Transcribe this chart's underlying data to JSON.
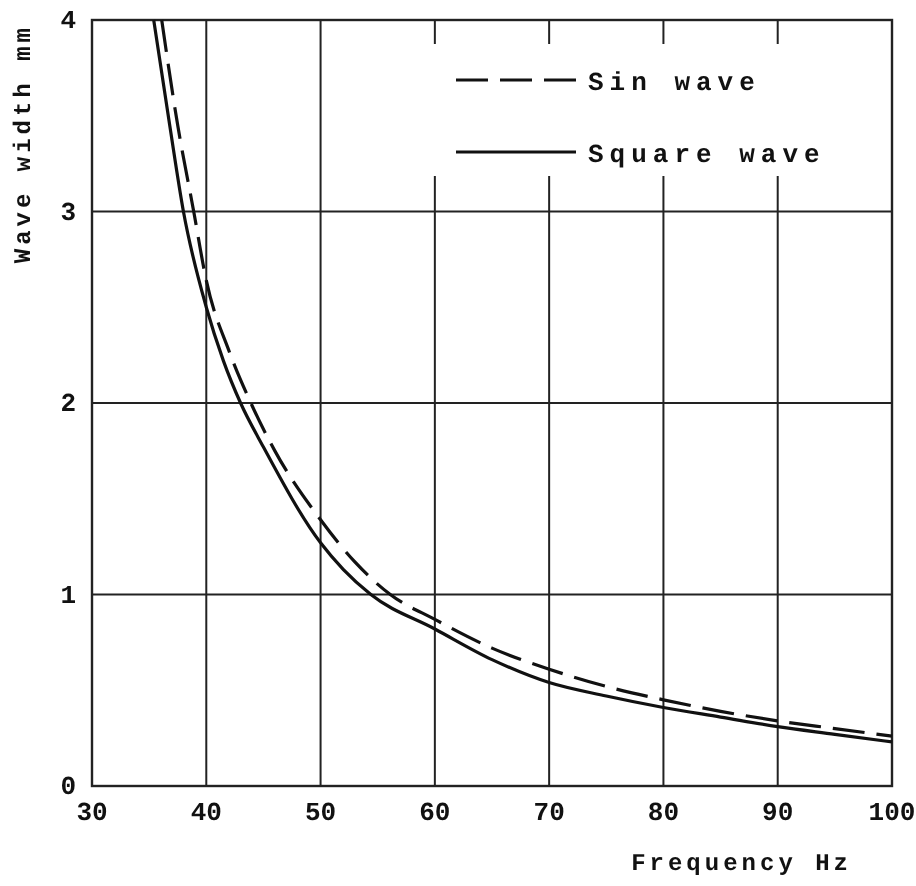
{
  "chart_data": {
    "type": "line",
    "xlabel": "Frequency    Hz",
    "ylabel": "Wave width    mm",
    "xlim": [
      30,
      100
    ],
    "xticks": [
      30,
      40,
      50,
      60,
      70,
      80,
      90,
      100
    ],
    "ylim": [
      0,
      4
    ],
    "yticks": [
      0,
      1,
      2,
      3,
      4
    ],
    "grid": true,
    "legend": "top right",
    "series": [
      {
        "name": "Sin wave",
        "color": "#111111",
        "line_style": "dashed",
        "x": [
          36.1,
          37.5,
          38.9,
          40,
          42,
          43.9,
          46,
          50,
          53,
          56.1,
          60,
          65,
          70,
          75,
          80,
          85,
          90,
          95,
          100
        ],
        "values": [
          4,
          3.45,
          3,
          2.64,
          2.27,
          2,
          1.75,
          1.39,
          1.17,
          1,
          0.87,
          0.72,
          0.61,
          0.52,
          0.45,
          0.39,
          0.34,
          0.3,
          0.26
        ]
      },
      {
        "name": "Square wave",
        "color": "#111111",
        "line_style": "solid",
        "x": [
          35.4,
          36.8,
          38,
          40,
          41.5,
          43,
          45,
          50,
          52,
          54.4,
          60,
          65,
          70,
          75,
          80,
          85,
          90,
          95,
          100
        ],
        "values": [
          4,
          3.45,
          3,
          2.5,
          2.22,
          2,
          1.77,
          1.27,
          1.13,
          1,
          0.82,
          0.66,
          0.54,
          0.47,
          0.41,
          0.36,
          0.31,
          0.27,
          0.23
        ]
      }
    ]
  }
}
